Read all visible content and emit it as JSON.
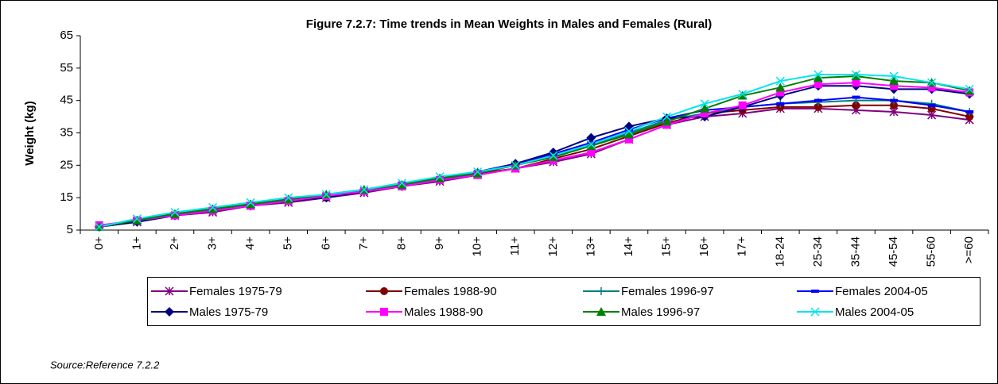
{
  "chart_data": {
    "type": "line",
    "title": "Figure 7.2.7: Time trends  in Mean Weights in Males and Females (Rural)",
    "y_label": "Weight (kg)",
    "source": "Source:Reference 7.2.2",
    "categories": [
      "0+",
      "1+",
      "2+",
      "3+",
      "4+",
      "5+",
      "6+",
      "7+",
      "8+",
      "9+",
      "10+",
      "11+",
      "12+",
      "13+",
      "14+",
      "15+",
      "16+",
      "17+",
      "18-24",
      "25-34",
      "35-44",
      "45-54",
      "55-60",
      ">=60"
    ],
    "ylim": [
      5,
      65
    ],
    "yticks": [
      5,
      15,
      25,
      35,
      45,
      55,
      65
    ],
    "grid": false,
    "series": [
      {
        "name": "Females 1975-79",
        "color": "#800080",
        "marker": "asterisk",
        "values": [
          6,
          7.5,
          9.5,
          10.5,
          12.5,
          13.5,
          15,
          16.5,
          18.5,
          20,
          22,
          24,
          26,
          28.5,
          33,
          37.5,
          40,
          41,
          42.5,
          42.5,
          42,
          41.5,
          40.5,
          39
        ]
      },
      {
        "name": "Females 1988-90",
        "color": "#800000",
        "marker": "circle",
        "values": [
          6,
          8,
          9.5,
          11,
          12.5,
          14,
          15,
          17,
          18.5,
          20.5,
          22.5,
          24,
          27,
          30,
          34,
          38,
          41,
          42,
          43,
          43,
          43.5,
          43.5,
          42.5,
          40
        ]
      },
      {
        "name": "Females 1996-97",
        "color": "#008080",
        "marker": "plus",
        "values": [
          6,
          8,
          10,
          11.5,
          13,
          14.5,
          15.5,
          17.5,
          19,
          21,
          23,
          25,
          28,
          31,
          35,
          39,
          41,
          43,
          44,
          44.5,
          45,
          45,
          44,
          41.5
        ]
      },
      {
        "name": "Females 2004-05",
        "color": "#0000ff",
        "marker": "dash",
        "values": [
          6,
          8.5,
          10,
          11.5,
          13,
          14.5,
          16,
          17.5,
          19.5,
          21,
          23,
          25.5,
          28.5,
          32,
          36,
          39.5,
          42,
          43,
          44,
          45,
          46,
          45,
          43.5,
          41.5
        ]
      },
      {
        "name": "Males 1975-79",
        "color": "#000080",
        "marker": "diamond",
        "values": [
          6,
          7.5,
          9.5,
          11,
          12.5,
          14,
          15,
          17,
          18.5,
          20.5,
          22.5,
          25.5,
          29,
          33.5,
          37,
          39.5,
          40,
          43,
          46.5,
          49.5,
          49.5,
          48.5,
          48.5,
          47
        ]
      },
      {
        "name": "Males 1988-90",
        "color": "#ff00ff",
        "marker": "square",
        "values": [
          6.5,
          8,
          9.5,
          11,
          12.5,
          14,
          15.5,
          17,
          18.5,
          20.5,
          22,
          24,
          26.5,
          29,
          33,
          37.5,
          41,
          43.5,
          47.5,
          50,
          50.5,
          49.5,
          49,
          47.5
        ]
      },
      {
        "name": "Males 1996-97",
        "color": "#008000",
        "marker": "triangle",
        "values": [
          6,
          8,
          10,
          11.5,
          13,
          14.5,
          16,
          17.5,
          19,
          21,
          22.5,
          25,
          27.5,
          31,
          34.5,
          38.5,
          42.5,
          46.5,
          49,
          52,
          52.5,
          51,
          50.5,
          48
        ]
      },
      {
        "name": "Males 2004-05",
        "color": "#00e5ee",
        "marker": "x",
        "values": [
          6,
          8.5,
          10.5,
          12,
          13.5,
          15,
          16,
          17.5,
          19.5,
          21.5,
          23,
          25,
          28,
          31.5,
          35.5,
          40,
          44,
          47,
          51,
          53,
          53,
          52.5,
          50.5,
          48.5
        ]
      }
    ]
  }
}
